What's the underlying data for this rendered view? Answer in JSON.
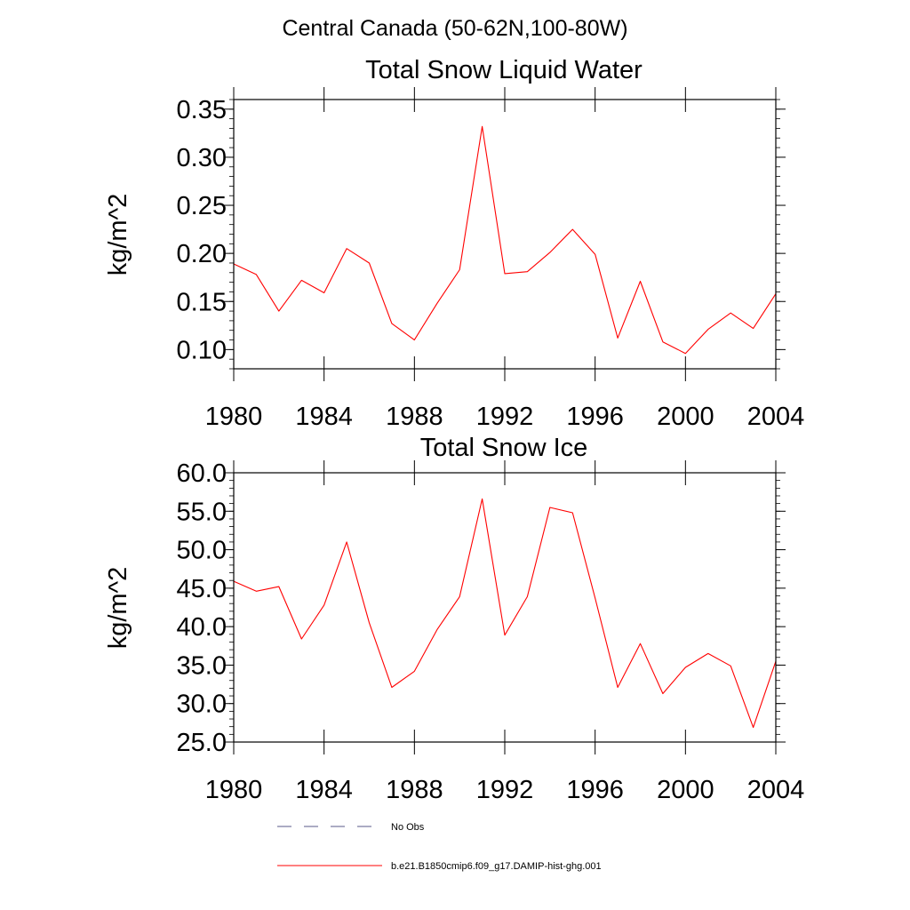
{
  "figure": {
    "supertitle": "Central Canada (50-62N,100-80W)"
  },
  "chart_data": [
    {
      "type": "line",
      "title": "Total Snow Liquid Water",
      "xlabel": "",
      "ylabel": "kg/m^2",
      "xlim": [
        1980,
        2004
      ],
      "ylim": [
        0.08,
        0.36
      ],
      "x_ticks": [
        1980,
        1984,
        1988,
        1992,
        1996,
        2000,
        2004
      ],
      "x_tick_labels": [
        "1980",
        "1984",
        "1988",
        "1992",
        "1996",
        "2000",
        "2004"
      ],
      "y_ticks": [
        0.1,
        0.15,
        0.2,
        0.25,
        0.3,
        0.35
      ],
      "y_tick_labels": [
        "0.10",
        "0.15",
        "0.20",
        "0.25",
        "0.30",
        "0.35"
      ],
      "y_minor_step": 0.01,
      "grid": false,
      "series": [
        {
          "name": "b.e21.B1850cmip6.f09_g17.DAMIP-hist-ghg.001",
          "color": "#ff0000",
          "x": [
            1980,
            1981,
            1982,
            1983,
            1984,
            1985,
            1986,
            1987,
            1988,
            1989,
            1990,
            1991,
            1992,
            1993,
            1994,
            1995,
            1996,
            1997,
            1998,
            1999,
            2000,
            2001,
            2002,
            2003,
            2004
          ],
          "y": [
            0.189,
            0.178,
            0.14,
            0.172,
            0.159,
            0.205,
            0.19,
            0.127,
            0.11,
            0.148,
            0.183,
            0.332,
            0.179,
            0.181,
            0.201,
            0.225,
            0.199,
            0.112,
            0.171,
            0.108,
            0.096,
            0.121,
            0.138,
            0.122,
            0.158
          ]
        }
      ]
    },
    {
      "type": "line",
      "title": "Total Snow Ice",
      "xlabel": "",
      "ylabel": "kg/m^2",
      "xlim": [
        1980,
        2004
      ],
      "ylim": [
        25.0,
        60.0
      ],
      "x_ticks": [
        1980,
        1984,
        1988,
        1992,
        1996,
        2000,
        2004
      ],
      "x_tick_labels": [
        "1980",
        "1984",
        "1988",
        "1992",
        "1996",
        "2000",
        "2004"
      ],
      "y_ticks": [
        25.0,
        30.0,
        35.0,
        40.0,
        45.0,
        50.0,
        55.0,
        60.0
      ],
      "y_tick_labels": [
        "25.0",
        "30.0",
        "35.0",
        "40.0",
        "45.0",
        "50.0",
        "55.0",
        "60.0"
      ],
      "y_minor_step": 1.0,
      "grid": false,
      "series": [
        {
          "name": "b.e21.B1850cmip6.f09_g17.DAMIP-hist-ghg.001",
          "color": "#ff0000",
          "x": [
            1980,
            1981,
            1982,
            1983,
            1984,
            1985,
            1986,
            1987,
            1988,
            1989,
            1990,
            1991,
            1992,
            1993,
            1994,
            1995,
            1996,
            1997,
            1998,
            1999,
            2000,
            2001,
            2002,
            2003,
            2004
          ],
          "y": [
            45.9,
            44.6,
            45.2,
            38.4,
            42.8,
            51.0,
            40.5,
            32.1,
            34.2,
            39.6,
            43.9,
            56.6,
            38.9,
            43.9,
            55.5,
            54.8,
            43.7,
            32.1,
            37.8,
            31.3,
            34.7,
            36.5,
            34.9,
            26.9,
            35.5
          ]
        }
      ]
    }
  ],
  "legend": {
    "placement": "bottom-center",
    "entries": [
      {
        "label": "No Obs",
        "style": "dashed",
        "color": "#5a5a8a"
      },
      {
        "label": "b.e21.B1850cmip6.f09_g17.DAMIP-hist-ghg.001",
        "style": "solid",
        "color": "#ff0000"
      }
    ]
  }
}
